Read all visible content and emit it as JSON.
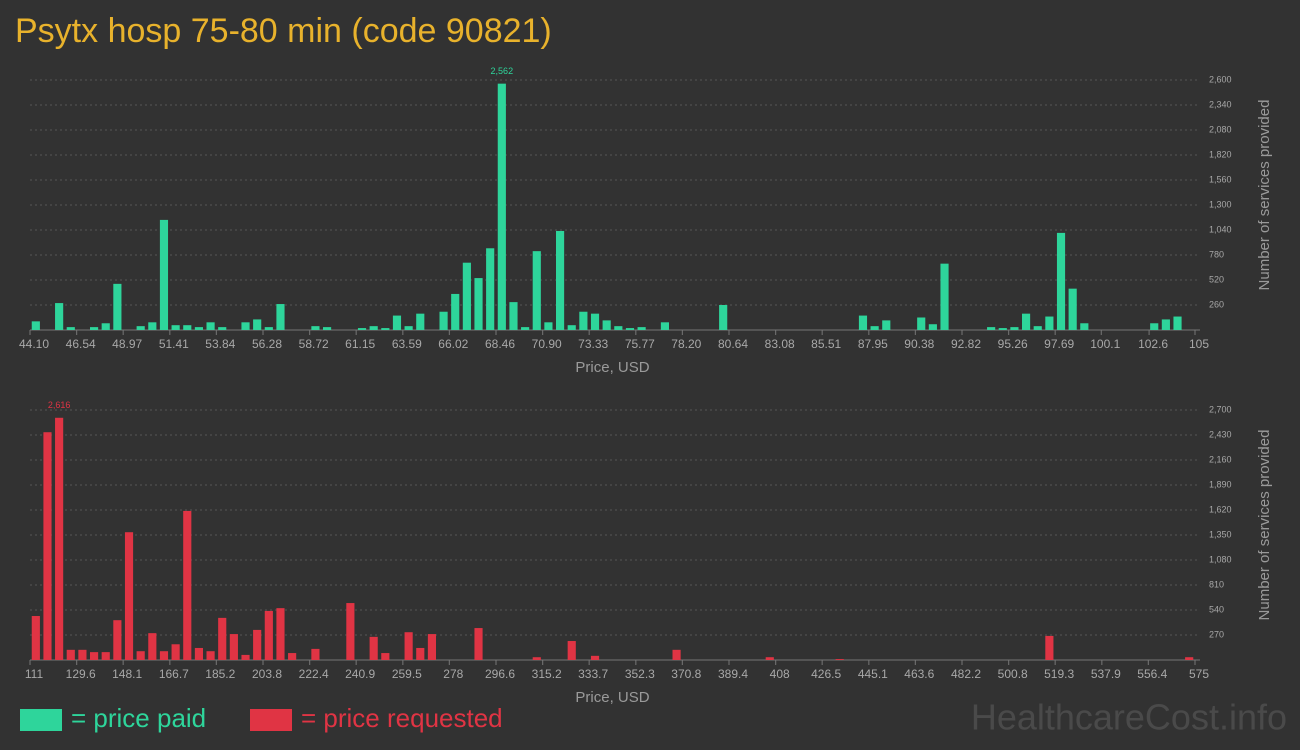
{
  "title": "Psytx hosp 75-80 min (code 90821)",
  "watermark": "HealthcareCost.info",
  "chart_data": [
    {
      "type": "histogram",
      "xlabel": "Price, USD",
      "ylabel": "Number of services provided",
      "grid": true,
      "y_axis_side": "right",
      "bins": [
        44.1,
        44.709,
        45.318,
        45.927,
        46.536,
        47.145,
        47.754,
        48.363,
        48.972,
        49.581,
        50.19,
        50.799,
        51.408,
        52.017,
        52.626,
        53.235,
        53.844,
        54.453,
        55.062,
        55.671,
        56.28,
        56.889,
        57.498,
        58.107,
        58.716,
        59.325,
        59.934,
        60.543,
        61.152,
        61.761,
        62.37,
        62.979,
        63.588,
        64.197,
        64.806,
        65.415,
        66.024,
        66.633,
        67.242,
        67.851,
        68.46,
        69.069,
        69.678,
        70.287,
        70.896,
        71.505,
        72.114,
        72.723,
        73.332,
        73.941,
        74.55,
        75.159,
        75.768,
        76.377,
        76.986,
        77.595,
        78.204,
        78.813,
        79.422,
        80.031,
        80.64,
        81.249,
        81.858,
        82.467,
        83.076,
        83.685,
        84.294,
        84.903,
        85.512,
        86.121,
        86.73,
        87.339,
        87.948,
        88.557,
        89.166,
        89.775,
        90.384,
        90.993,
        91.602,
        92.211,
        92.82,
        93.429,
        94.038,
        94.647,
        95.256,
        95.865,
        96.474,
        97.083,
        97.692,
        98.301,
        98.91,
        99.519,
        100.128,
        100.737,
        101.346,
        101.955,
        102.564,
        103.173,
        103.782,
        104.391,
        105
      ],
      "series": [
        {
          "name": "= price paid",
          "color": "#2ed59b",
          "values": [
            90,
            0,
            280,
            30,
            0,
            30,
            70,
            480,
            0,
            40,
            80,
            1145,
            50,
            50,
            30,
            80,
            30,
            0,
            80,
            110,
            30,
            270,
            0,
            0,
            40,
            30,
            0,
            0,
            20,
            40,
            20,
            150,
            40,
            170,
            0,
            190,
            375,
            700,
            540,
            850,
            2562,
            290,
            30,
            820,
            80,
            1030,
            50,
            190,
            170,
            100,
            40,
            20,
            30,
            0,
            80,
            0,
            0,
            0,
            0,
            260,
            0,
            0,
            0,
            0,
            0,
            0,
            0,
            0,
            0,
            0,
            0,
            150,
            40,
            100,
            0,
            0,
            130,
            60,
            690,
            0,
            0,
            0,
            30,
            20,
            30,
            170,
            40,
            140,
            1010,
            430,
            70,
            0,
            0,
            0,
            0,
            0,
            70,
            110,
            140,
            0
          ],
          "value_labels": [
            null,
            null,
            null,
            null,
            null,
            null,
            null,
            null,
            null,
            null,
            null,
            null,
            null,
            null,
            null,
            null,
            null,
            null,
            null,
            null,
            null,
            null,
            null,
            null,
            null,
            null,
            null,
            null,
            null,
            null,
            null,
            null,
            null,
            null,
            null,
            null,
            null,
            null,
            null,
            null,
            "2,562",
            null,
            null,
            null,
            null,
            null,
            null,
            null,
            null,
            null,
            null,
            null,
            null,
            null,
            null,
            null,
            null,
            null,
            null,
            null,
            null,
            null,
            null,
            null,
            null,
            null,
            null,
            null,
            null,
            null,
            null,
            null,
            null,
            null,
            null,
            null,
            null,
            null,
            null,
            null,
            null,
            null,
            null,
            null,
            null,
            null,
            null,
            null,
            null,
            null,
            null,
            null,
            null,
            null,
            null,
            null,
            null,
            null,
            null,
            null
          ]
        }
      ],
      "xlim": [
        44.1,
        105
      ],
      "xticks": [
        {
          "value": 44.1,
          "label": "44.10"
        },
        46.54,
        48.97,
        51.41,
        53.84,
        56.28,
        58.72,
        61.15,
        63.59,
        66.02,
        68.46,
        {
          "value": 70.9,
          "label": "70.90"
        },
        73.33,
        75.77,
        {
          "value": 78.2,
          "label": "78.20"
        },
        80.64,
        83.08,
        85.51,
        87.95,
        90.38,
        92.82,
        95.26,
        97.69,
        100.1,
        102.6,
        105
      ],
      "ylim": [
        0,
        2600
      ],
      "yticks": [
        260,
        520,
        780,
        {
          "value": 1040,
          "label": "1,040"
        },
        {
          "value": 1300,
          "label": "1,300"
        },
        {
          "value": 1560,
          "label": "1,560"
        },
        {
          "value": 1820,
          "label": "1,820"
        },
        {
          "value": 2080,
          "label": "2,080"
        },
        {
          "value": 2340,
          "label": "2,340"
        },
        {
          "value": 2600,
          "label": "2,600"
        }
      ]
    },
    {
      "type": "histogram",
      "xlabel": "Price, USD",
      "ylabel": "Number of services provided",
      "grid": true,
      "y_axis_side": "right",
      "bins": [
        111,
        115.64,
        120.28,
        124.92,
        129.56,
        134.2,
        138.84,
        143.48,
        148.12,
        152.76,
        157.4,
        162.04,
        166.68,
        171.32,
        175.96,
        180.6,
        185.24,
        189.88,
        194.52,
        199.16,
        203.8,
        208.44,
        213.08,
        217.72,
        222.36,
        227,
        231.64,
        236.28,
        240.92,
        245.56,
        250.2,
        254.84,
        259.48,
        264.12,
        268.76,
        273.4,
        278.04,
        282.68,
        287.32,
        291.96,
        296.6,
        301.24,
        305.88,
        310.52,
        315.16,
        319.8,
        324.44,
        329.08,
        333.72,
        338.36,
        343,
        347.64,
        352.28,
        356.92,
        361.56,
        366.2,
        370.84,
        375.48,
        380.12,
        384.76,
        389.4,
        394.04,
        398.68,
        403.32,
        407.96,
        412.6,
        417.24,
        421.88,
        426.52,
        431.16,
        435.8,
        440.44,
        445.08,
        449.72,
        454.36,
        459,
        463.64,
        468.28,
        472.92,
        477.56,
        482.2,
        486.84,
        491.48,
        496.12,
        500.76,
        505.4,
        510.04,
        514.68,
        519.32,
        523.96,
        528.6,
        533.24,
        537.88,
        542.52,
        547.16,
        551.8,
        556.44,
        561.08,
        565.72,
        570.36,
        575
      ],
      "series": [
        {
          "name": "= price requested",
          "color": "#e03444",
          "values": [
            475,
            2460,
            2616,
            110,
            110,
            85,
            85,
            430,
            1380,
            95,
            290,
            95,
            170,
            1610,
            130,
            95,
            455,
            280,
            55,
            325,
            530,
            560,
            75,
            0,
            120,
            0,
            0,
            615,
            0,
            250,
            75,
            0,
            300,
            130,
            280,
            0,
            0,
            0,
            345,
            0,
            0,
            0,
            0,
            30,
            0,
            0,
            205,
            0,
            45,
            0,
            0,
            0,
            0,
            0,
            0,
            110,
            0,
            0,
            0,
            0,
            0,
            0,
            0,
            30,
            0,
            0,
            0,
            0,
            0,
            10,
            0,
            0,
            0,
            0,
            0,
            0,
            0,
            0,
            0,
            0,
            0,
            0,
            0,
            0,
            0,
            0,
            0,
            260,
            0,
            0,
            0,
            0,
            0,
            0,
            0,
            0,
            0,
            0,
            0,
            30
          ],
          "value_labels": [
            null,
            null,
            "2,616",
            null,
            null,
            null,
            null,
            null,
            null,
            null,
            null,
            null,
            null,
            null,
            null,
            null,
            null,
            null,
            null,
            null,
            null,
            null,
            null,
            null,
            null,
            null,
            null,
            null,
            null,
            null,
            null,
            null,
            null,
            null,
            null,
            null,
            null,
            null,
            null,
            null,
            null,
            null,
            null,
            null,
            null,
            null,
            null,
            null,
            null,
            null,
            null,
            null,
            null,
            null,
            null,
            null,
            null,
            null,
            null,
            null,
            null,
            null,
            null,
            null,
            null,
            null,
            null,
            null,
            null,
            null,
            null,
            null,
            null,
            null,
            null,
            null,
            null,
            null,
            null,
            null,
            null,
            null,
            null,
            null,
            null,
            null,
            null,
            null,
            null,
            null,
            null,
            null,
            null,
            null,
            null,
            null,
            null,
            null,
            null,
            null
          ]
        }
      ],
      "xlim": [
        111,
        575
      ],
      "xticks": [
        111,
        129.6,
        148.1,
        166.7,
        185.2,
        203.8,
        222.4,
        240.9,
        259.5,
        278,
        296.6,
        315.2,
        333.7,
        352.3,
        370.8,
        389.4,
        408,
        426.5,
        445.1,
        463.6,
        482.2,
        500.8,
        519.3,
        537.9,
        556.4,
        575
      ],
      "ylim": [
        0,
        2700
      ],
      "yticks": [
        270,
        540,
        810,
        {
          "value": 1080,
          "label": "1,080"
        },
        {
          "value": 1350,
          "label": "1,350"
        },
        {
          "value": 1620,
          "label": "1,620"
        },
        {
          "value": 1890,
          "label": "1,890"
        },
        {
          "value": 2160,
          "label": "2,160"
        },
        {
          "value": 2430,
          "label": "2,430"
        },
        {
          "value": 2700,
          "label": "2,700"
        }
      ]
    }
  ]
}
